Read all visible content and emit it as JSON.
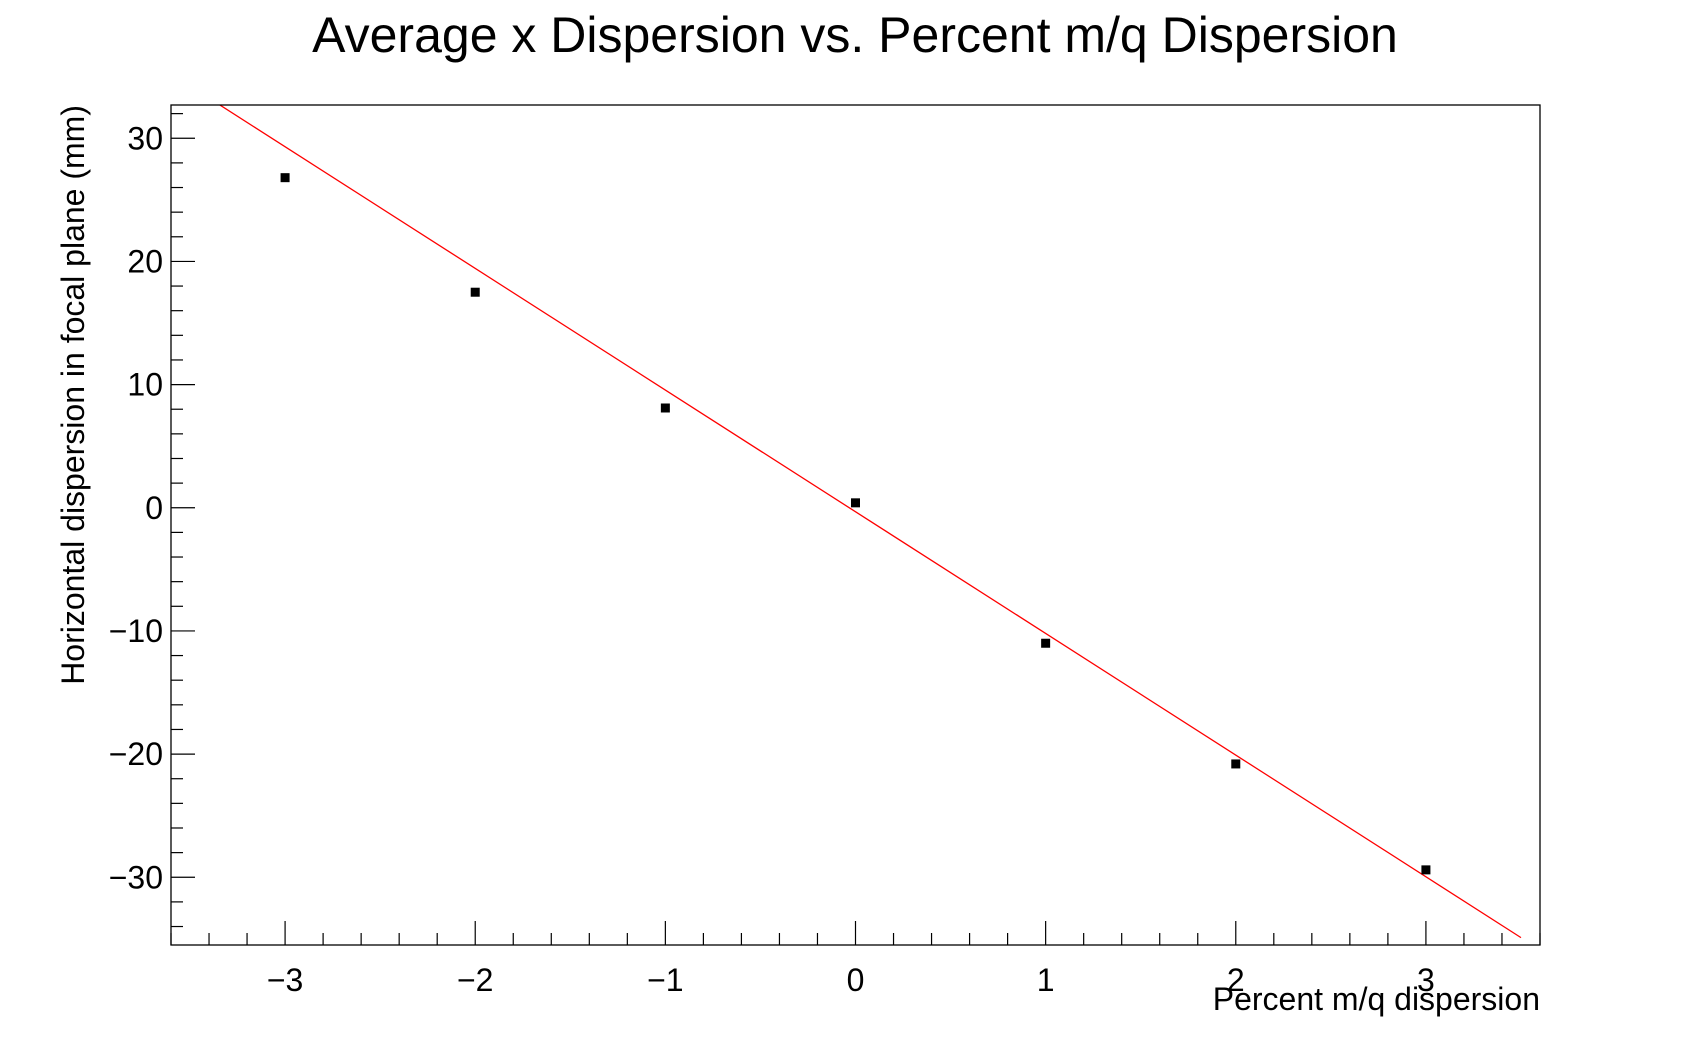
{
  "chart_data": {
    "type": "scatter",
    "title": "Average x Dispersion vs. Percent m/q Dispersion",
    "xlabel": "Percent m/q dispersion",
    "ylabel": "Horizontal dispersion in focal plane (mm)",
    "xlim": [
      -3.6,
      3.6
    ],
    "ylim": [
      -35.5,
      32.7
    ],
    "x_ticks": [
      -3,
      -2,
      -1,
      0,
      1,
      2,
      3
    ],
    "x_tick_labels": [
      "−3",
      "−2",
      "−1",
      "0",
      "1",
      "2",
      "3"
    ],
    "y_ticks": [
      -30,
      -20,
      -10,
      0,
      10,
      20,
      30
    ],
    "y_tick_labels": [
      "−30",
      "−20",
      "−10",
      "0",
      "10",
      "20",
      "30"
    ],
    "grid": false,
    "legend": "none",
    "series": [
      {
        "x": [
          -3,
          -2,
          -1,
          0,
          1,
          2,
          3
        ],
        "y": [
          26.8,
          17.5,
          8.1,
          0.4,
          -11.0,
          -20.8,
          -29.4
        ],
        "marker": "square",
        "color": "#000000"
      }
    ],
    "fit_line": {
      "x": [
        -3.6,
        3.5
      ],
      "y": [
        35.24,
        -34.9
      ],
      "color": "#ff0000"
    }
  }
}
